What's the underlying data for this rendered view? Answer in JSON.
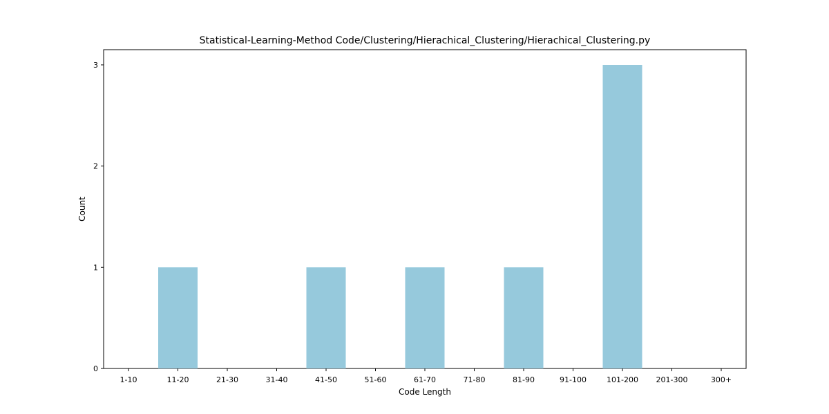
{
  "chart_data": {
    "type": "bar",
    "title": "Statistical-Learning-Method Code/Clustering/Hierachical_Clustering/Hierachical_Clustering.py",
    "xlabel": "Code Length",
    "ylabel": "Count",
    "categories": [
      "1-10",
      "11-20",
      "21-30",
      "31-40",
      "41-50",
      "51-60",
      "61-70",
      "71-80",
      "81-90",
      "91-100",
      "101-200",
      "201-300",
      "300+"
    ],
    "values": [
      0,
      1,
      0,
      0,
      1,
      0,
      1,
      0,
      1,
      0,
      3,
      0,
      0
    ],
    "yticks": [
      0,
      1,
      2,
      3
    ],
    "ylim": [
      0,
      3.15
    ],
    "bar_color": "#96c9dc",
    "grid": false,
    "legend": "none"
  }
}
